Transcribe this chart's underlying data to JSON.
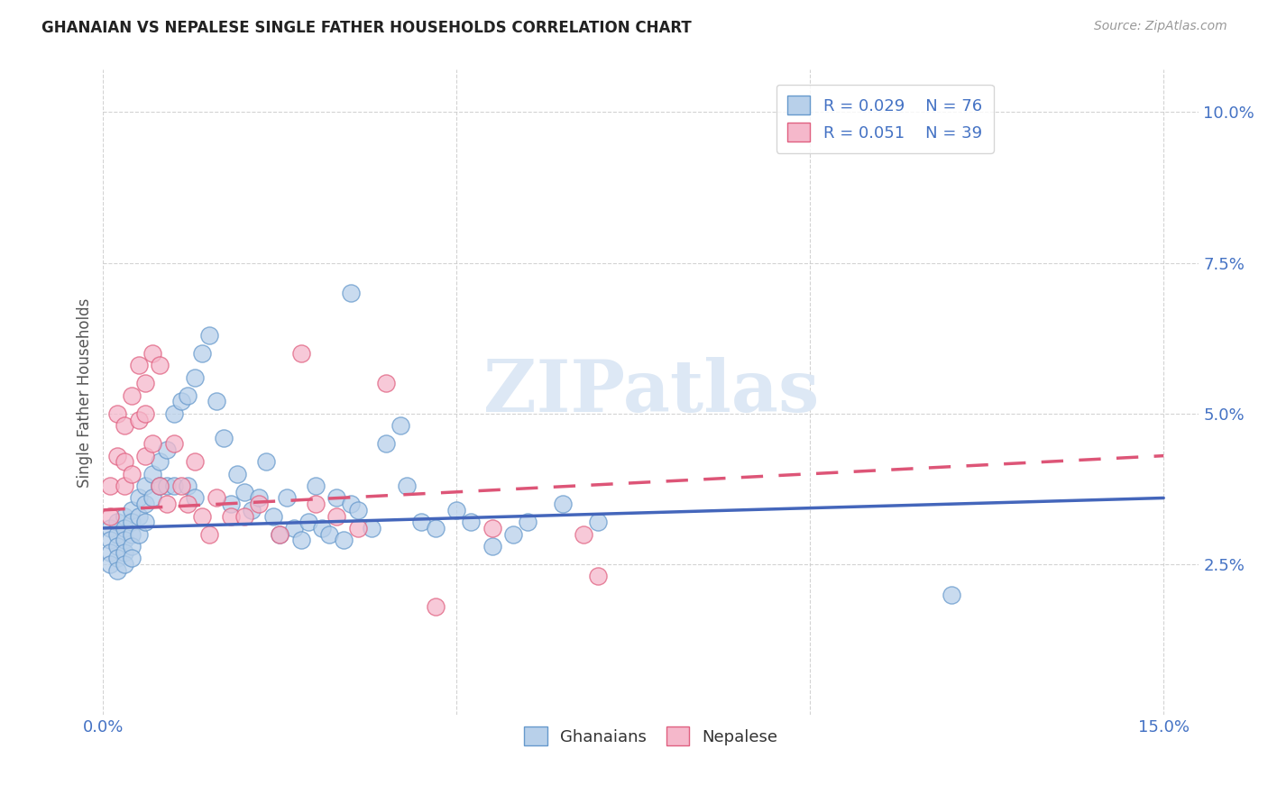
{
  "title": "GHANAIAN VS NEPALESE SINGLE FATHER HOUSEHOLDS CORRELATION CHART",
  "source": "Source: ZipAtlas.com",
  "ylabel": "Single Father Households",
  "xlim": [
    0.0,
    0.155
  ],
  "ylim": [
    0.0,
    0.107
  ],
  "xtick_positions": [
    0.0,
    0.05,
    0.1,
    0.15
  ],
  "xtick_labels": [
    "0.0%",
    "",
    "",
    "15.0%"
  ],
  "ytick_positions": [
    0.025,
    0.05,
    0.075,
    0.1
  ],
  "ytick_labels": [
    "2.5%",
    "5.0%",
    "7.5%",
    "10.0%"
  ],
  "ghanaian_fill": "#b8d0ea",
  "ghanaian_edge": "#6699cc",
  "nepalese_fill": "#f5b8cb",
  "nepalese_edge": "#e06080",
  "trend_blue": "#4466bb",
  "trend_pink": "#dd5577",
  "watermark_text": "ZIPatlas",
  "watermark_color": "#dde8f5",
  "legend_r1": "0.029",
  "legend_n1": "76",
  "legend_r2": "0.051",
  "legend_n2": "39",
  "blue_label": "Ghanaians",
  "pink_label": "Nepalese",
  "trend_blue_x0": 0.0,
  "trend_blue_y0": 0.031,
  "trend_blue_x1": 0.15,
  "trend_blue_y1": 0.036,
  "trend_pink_x0": 0.0,
  "trend_pink_y0": 0.034,
  "trend_pink_x1": 0.15,
  "trend_pink_y1": 0.043,
  "ghanaians_x": [
    0.001,
    0.001,
    0.001,
    0.001,
    0.002,
    0.002,
    0.002,
    0.002,
    0.002,
    0.003,
    0.003,
    0.003,
    0.003,
    0.003,
    0.004,
    0.004,
    0.004,
    0.004,
    0.004,
    0.005,
    0.005,
    0.005,
    0.006,
    0.006,
    0.006,
    0.007,
    0.007,
    0.008,
    0.008,
    0.009,
    0.009,
    0.01,
    0.01,
    0.011,
    0.012,
    0.012,
    0.013,
    0.013,
    0.014,
    0.015,
    0.016,
    0.017,
    0.018,
    0.019,
    0.02,
    0.021,
    0.022,
    0.023,
    0.024,
    0.025,
    0.026,
    0.027,
    0.028,
    0.029,
    0.03,
    0.031,
    0.032,
    0.033,
    0.034,
    0.035,
    0.035,
    0.036,
    0.038,
    0.04,
    0.042,
    0.043,
    0.045,
    0.047,
    0.05,
    0.052,
    0.055,
    0.058,
    0.06,
    0.065,
    0.07,
    0.12
  ],
  "ghanaians_y": [
    0.031,
    0.029,
    0.027,
    0.025,
    0.032,
    0.03,
    0.028,
    0.026,
    0.024,
    0.033,
    0.031,
    0.029,
    0.027,
    0.025,
    0.034,
    0.032,
    0.03,
    0.028,
    0.026,
    0.036,
    0.033,
    0.03,
    0.038,
    0.035,
    0.032,
    0.04,
    0.036,
    0.042,
    0.038,
    0.044,
    0.038,
    0.05,
    0.038,
    0.052,
    0.053,
    0.038,
    0.056,
    0.036,
    0.06,
    0.063,
    0.052,
    0.046,
    0.035,
    0.04,
    0.037,
    0.034,
    0.036,
    0.042,
    0.033,
    0.03,
    0.036,
    0.031,
    0.029,
    0.032,
    0.038,
    0.031,
    0.03,
    0.036,
    0.029,
    0.035,
    0.07,
    0.034,
    0.031,
    0.045,
    0.048,
    0.038,
    0.032,
    0.031,
    0.034,
    0.032,
    0.028,
    0.03,
    0.032,
    0.035,
    0.032,
    0.02
  ],
  "nepalese_x": [
    0.001,
    0.001,
    0.002,
    0.002,
    0.003,
    0.003,
    0.003,
    0.004,
    0.004,
    0.005,
    0.005,
    0.006,
    0.006,
    0.006,
    0.007,
    0.007,
    0.008,
    0.008,
    0.009,
    0.01,
    0.011,
    0.012,
    0.013,
    0.014,
    0.015,
    0.016,
    0.018,
    0.02,
    0.022,
    0.025,
    0.028,
    0.03,
    0.033,
    0.036,
    0.04,
    0.047,
    0.055,
    0.068,
    0.07
  ],
  "nepalese_y": [
    0.038,
    0.033,
    0.05,
    0.043,
    0.048,
    0.042,
    0.038,
    0.053,
    0.04,
    0.058,
    0.049,
    0.055,
    0.05,
    0.043,
    0.06,
    0.045,
    0.058,
    0.038,
    0.035,
    0.045,
    0.038,
    0.035,
    0.042,
    0.033,
    0.03,
    0.036,
    0.033,
    0.033,
    0.035,
    0.03,
    0.06,
    0.035,
    0.033,
    0.031,
    0.055,
    0.018,
    0.031,
    0.03,
    0.023
  ]
}
